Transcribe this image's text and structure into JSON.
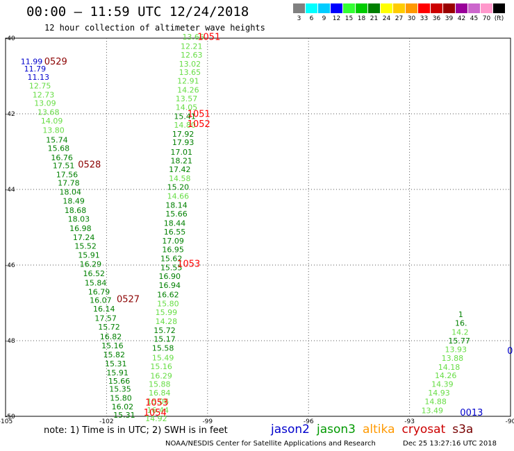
{
  "header": {
    "title": "00:00 – 11:59 UTC 12/24/2018",
    "subtitle": "12 hour collection of altimeter wave heights"
  },
  "colors": {
    "jason2": "#0000cc",
    "jason3": "#009900",
    "altika": "#ff9900",
    "cryosat": "#cc0000",
    "s3a": "#770000",
    "green_dark": "#008000",
    "green_light": "#66dd44",
    "blue": "#0000cc",
    "red": "#ff0000",
    "maroon": "#8b0000",
    "grid": "#555555"
  },
  "scale": {
    "colors": [
      "#808080",
      "#00ffff",
      "#00ccff",
      "#0000ff",
      "#33ff33",
      "#00cc00",
      "#008000",
      "#ffff00",
      "#ffcc00",
      "#ff9900",
      "#ff0000",
      "#cc0000",
      "#990000",
      "#990099",
      "#cc66cc",
      "#ff99cc",
      "#000000"
    ],
    "labels": [
      "3",
      "6",
      "9",
      "12",
      "15",
      "18",
      "21",
      "24",
      "27",
      "30",
      "33",
      "36",
      "39",
      "42",
      "45",
      "70",
      "(ft)"
    ]
  },
  "footer": {
    "note": "note: 1) Time is in UTC; 2) SWH is in feet",
    "sats": [
      "jason2",
      "jason3",
      "altika",
      "cryosat",
      "s3a"
    ],
    "credit": "NOAA/NESDIS Center for Satellite Applications and Research",
    "stamp": "Dec 25 13:27:16 UTC 2018"
  },
  "chart_data": {
    "type": "scatter",
    "title": "00:00 – 11:59 UTC 12/24/2018",
    "subtitle": "12 hour collection of altimeter wave heights",
    "xlabel": "",
    "ylabel": "",
    "xlim": [
      -105,
      -90
    ],
    "ylim": [
      -50,
      -40
    ],
    "x_ticks": [
      "-105",
      "-102",
      "-99",
      "-96",
      "-93",
      "-90"
    ],
    "x_tick_values": [
      -105,
      -102,
      -99,
      -96,
      -93,
      -90
    ],
    "y_ticks": [
      "-40",
      "-42",
      "-44",
      "-46",
      "-48",
      "-50"
    ],
    "y_tick_values": [
      -40,
      -42,
      -44,
      -46,
      -48,
      -50
    ],
    "grid": true,
    "series": [
      {
        "name": "0529",
        "color_key": "blue_to_green",
        "points": [
          {
            "lon": -104.55,
            "lat": -40.69,
            "v": "11.99",
            "c": "blue"
          },
          {
            "lon": -104.45,
            "lat": -40.88,
            "v": "11.79",
            "c": "blue"
          },
          {
            "lon": -104.35,
            "lat": -41.1,
            "v": "11.13",
            "c": "blue"
          },
          {
            "lon": -104.3,
            "lat": -41.33,
            "v": "12.75",
            "c": "green_light"
          },
          {
            "lon": -104.2,
            "lat": -41.57,
            "v": "12.73",
            "c": "green_light"
          },
          {
            "lon": -104.15,
            "lat": -41.79,
            "v": "13.09",
            "c": "green_light"
          },
          {
            "lon": -104.05,
            "lat": -42.03,
            "v": "13.68",
            "c": "green_light"
          },
          {
            "lon": -103.95,
            "lat": -42.26,
            "v": "14.09",
            "c": "green_light"
          },
          {
            "lon": -103.9,
            "lat": -42.5,
            "v": "13.80",
            "c": "green_light"
          },
          {
            "lon": -103.8,
            "lat": -42.76,
            "v": "15.74",
            "c": "green_dark"
          },
          {
            "lon": -103.75,
            "lat": -42.98,
            "v": "15.68",
            "c": "green_dark"
          },
          {
            "lon": -103.65,
            "lat": -43.23,
            "v": "16.76",
            "c": "green_dark"
          },
          {
            "lon": -103.6,
            "lat": -43.44,
            "v": "17.51",
            "c": "green_dark"
          },
          {
            "lon": -103.5,
            "lat": -43.68,
            "v": "17.56",
            "c": "green_dark"
          },
          {
            "lon": -103.45,
            "lat": -43.9,
            "v": "17.78",
            "c": "green_dark"
          },
          {
            "lon": -103.4,
            "lat": -44.14,
            "v": "18.04",
            "c": "green_dark"
          },
          {
            "lon": -103.3,
            "lat": -44.38,
            "v": "18.49",
            "c": "green_dark"
          },
          {
            "lon": -103.25,
            "lat": -44.62,
            "v": "18.68",
            "c": "green_dark"
          },
          {
            "lon": -103.15,
            "lat": -44.85,
            "v": "18.03",
            "c": "green_dark"
          },
          {
            "lon": -103.1,
            "lat": -45.1,
            "v": "16.98",
            "c": "green_dark"
          },
          {
            "lon": -103.0,
            "lat": -45.34,
            "v": "17.24",
            "c": "green_dark"
          },
          {
            "lon": -102.95,
            "lat": -45.57,
            "v": "15.52",
            "c": "green_dark"
          },
          {
            "lon": -102.85,
            "lat": -45.81,
            "v": "15.91",
            "c": "green_dark"
          },
          {
            "lon": -102.8,
            "lat": -46.05,
            "v": "16.29",
            "c": "green_dark"
          },
          {
            "lon": -102.7,
            "lat": -46.29,
            "v": "16.52",
            "c": "green_dark"
          },
          {
            "lon": -102.65,
            "lat": -46.54,
            "v": "15.84",
            "c": "green_dark"
          },
          {
            "lon": -102.55,
            "lat": -46.78,
            "v": "16.79",
            "c": "green_dark"
          },
          {
            "lon": -102.5,
            "lat": -47.0,
            "v": "16.07",
            "c": "green_dark"
          },
          {
            "lon": -102.4,
            "lat": -47.23,
            "v": "16.14",
            "c": "green_dark"
          },
          {
            "lon": -102.35,
            "lat": -47.48,
            "v": "17.57",
            "c": "green_dark"
          },
          {
            "lon": -102.25,
            "lat": -47.71,
            "v": "15.72",
            "c": "green_dark"
          },
          {
            "lon": -102.2,
            "lat": -47.96,
            "v": "16.82",
            "c": "green_dark"
          },
          {
            "lon": -102.15,
            "lat": -48.2,
            "v": "15.16",
            "c": "green_dark"
          },
          {
            "lon": -102.1,
            "lat": -48.44,
            "v": "15.82",
            "c": "green_dark"
          },
          {
            "lon": -102.05,
            "lat": -48.68,
            "v": "15.31",
            "c": "green_dark"
          },
          {
            "lon": -102.0,
            "lat": -48.92,
            "v": "15.91",
            "c": "green_dark"
          },
          {
            "lon": -101.95,
            "lat": -49.14,
            "v": "15.66",
            "c": "green_dark"
          },
          {
            "lon": -101.92,
            "lat": -49.35,
            "v": "15.35",
            "c": "green_dark"
          },
          {
            "lon": -101.9,
            "lat": -49.59,
            "v": "15.80",
            "c": "green_dark"
          },
          {
            "lon": -101.85,
            "lat": -49.82,
            "v": "16.02",
            "c": "green_dark"
          },
          {
            "lon": -101.8,
            "lat": -50.04,
            "v": "15.31",
            "c": "green_dark"
          }
        ]
      },
      {
        "name": "1051",
        "color_key": "green",
        "points": [
          {
            "lon": -99.75,
            "lat": -40.04,
            "v": "13.66",
            "c": "green_light"
          },
          {
            "lon": -99.8,
            "lat": -40.28,
            "v": "12.21",
            "c": "green_light"
          },
          {
            "lon": -99.8,
            "lat": -40.51,
            "v": "12.63",
            "c": "green_light"
          },
          {
            "lon": -99.85,
            "lat": -40.75,
            "v": "13.02",
            "c": "green_light"
          },
          {
            "lon": -99.85,
            "lat": -40.97,
            "v": "13.65",
            "c": "green_light"
          },
          {
            "lon": -99.9,
            "lat": -41.2,
            "v": "12.91",
            "c": "green_light"
          },
          {
            "lon": -99.9,
            "lat": -41.44,
            "v": "14.26",
            "c": "green_light"
          },
          {
            "lon": -99.95,
            "lat": -41.67,
            "v": "13.57",
            "c": "green_light"
          },
          {
            "lon": -99.95,
            "lat": -41.9,
            "v": "14.05",
            "c": "green_light"
          },
          {
            "lon": -100.0,
            "lat": -42.14,
            "v": "15.41",
            "c": "green_dark"
          },
          {
            "lon": -100.0,
            "lat": -42.37,
            "v": "14.80",
            "c": "green_light"
          },
          {
            "lon": -100.05,
            "lat": -42.61,
            "v": "17.92",
            "c": "green_dark"
          },
          {
            "lon": -100.05,
            "lat": -42.83,
            "v": "17.93",
            "c": "green_dark"
          },
          {
            "lon": -100.1,
            "lat": -43.08,
            "v": "17.01",
            "c": "green_dark"
          },
          {
            "lon": -100.1,
            "lat": -43.31,
            "v": "18.21",
            "c": "green_dark"
          },
          {
            "lon": -100.15,
            "lat": -43.54,
            "v": "17.42",
            "c": "green_dark"
          },
          {
            "lon": -100.15,
            "lat": -43.78,
            "v": "14.58",
            "c": "green_light"
          },
          {
            "lon": -100.2,
            "lat": -44.01,
            "v": "15.20",
            "c": "green_dark"
          },
          {
            "lon": -100.2,
            "lat": -44.25,
            "v": "14.66",
            "c": "green_light"
          },
          {
            "lon": -100.25,
            "lat": -44.49,
            "v": "18.14",
            "c": "green_dark"
          },
          {
            "lon": -100.25,
            "lat": -44.72,
            "v": "15.66",
            "c": "green_dark"
          },
          {
            "lon": -100.3,
            "lat": -44.96,
            "v": "18.44",
            "c": "green_dark"
          },
          {
            "lon": -100.3,
            "lat": -45.19,
            "v": "16.55",
            "c": "green_dark"
          },
          {
            "lon": -100.35,
            "lat": -45.43,
            "v": "17.09",
            "c": "green_dark"
          },
          {
            "lon": -100.35,
            "lat": -45.66,
            "v": "16.95",
            "c": "green_dark"
          },
          {
            "lon": -100.4,
            "lat": -45.9,
            "v": "15.62",
            "c": "green_dark"
          },
          {
            "lon": -100.4,
            "lat": -46.14,
            "v": "15.55",
            "c": "green_dark"
          },
          {
            "lon": -100.45,
            "lat": -46.37,
            "v": "16.90",
            "c": "green_dark"
          },
          {
            "lon": -100.45,
            "lat": -46.61,
            "v": "16.94",
            "c": "green_dark"
          },
          {
            "lon": -100.5,
            "lat": -46.85,
            "v": "16.62",
            "c": "green_dark"
          },
          {
            "lon": -100.5,
            "lat": -47.09,
            "v": "15.80",
            "c": "green_light"
          },
          {
            "lon": -100.55,
            "lat": -47.32,
            "v": "15.99",
            "c": "green_light"
          },
          {
            "lon": -100.55,
            "lat": -47.56,
            "v": "14.28",
            "c": "green_light"
          },
          {
            "lon": -100.6,
            "lat": -47.8,
            "v": "15.72",
            "c": "green_dark"
          },
          {
            "lon": -100.6,
            "lat": -48.03,
            "v": "15.17",
            "c": "green_dark"
          },
          {
            "lon": -100.65,
            "lat": -48.27,
            "v": "15.58",
            "c": "green_dark"
          },
          {
            "lon": -100.65,
            "lat": -48.52,
            "v": "15.49",
            "c": "green_light"
          },
          {
            "lon": -100.7,
            "lat": -48.75,
            "v": "15.16",
            "c": "green_light"
          },
          {
            "lon": -100.7,
            "lat": -49.0,
            "v": "16.29",
            "c": "green_light"
          },
          {
            "lon": -100.75,
            "lat": -49.22,
            "v": "15.88",
            "c": "green_light"
          },
          {
            "lon": -100.75,
            "lat": -49.45,
            "v": "16.84",
            "c": "green_light"
          },
          {
            "lon": -100.8,
            "lat": -49.68,
            "v": "15.06",
            "c": "green_light"
          },
          {
            "lon": -100.8,
            "lat": -49.91,
            "v": "16.44",
            "c": "green_light"
          },
          {
            "lon": -100.85,
            "lat": -50.13,
            "v": "14.92",
            "c": "green_light"
          }
        ]
      },
      {
        "name": "0013",
        "color_key": "green",
        "points": [
          {
            "lon": -92.65,
            "lat": -49.92,
            "v": "13.49",
            "c": "green_light"
          },
          {
            "lon": -92.55,
            "lat": -49.68,
            "v": "14.88",
            "c": "green_light"
          },
          {
            "lon": -92.45,
            "lat": -49.45,
            "v": "14.93",
            "c": "green_light"
          },
          {
            "lon": -92.35,
            "lat": -49.22,
            "v": "14.39",
            "c": "green_light"
          },
          {
            "lon": -92.25,
            "lat": -48.99,
            "v": "14.26",
            "c": "green_light"
          },
          {
            "lon": -92.15,
            "lat": -48.77,
            "v": "14.18",
            "c": "green_light"
          },
          {
            "lon": -92.05,
            "lat": -48.53,
            "v": "13.88",
            "c": "green_light"
          },
          {
            "lon": -91.95,
            "lat": -48.3,
            "v": "13.93",
            "c": "green_light"
          },
          {
            "lon": -91.85,
            "lat": -48.07,
            "v": "15.77",
            "c": "green_dark"
          },
          {
            "lon": -91.75,
            "lat": -47.84,
            "v": "14.2",
            "c": "green_light"
          },
          {
            "lon": -91.65,
            "lat": -47.61,
            "v": "16.",
            "c": "green_dark"
          },
          {
            "lon": -91.55,
            "lat": -47.38,
            "v": "1",
            "c": "green_dark"
          }
        ]
      }
    ],
    "pass_labels": [
      {
        "text": "1051",
        "lon": -99.3,
        "lat": -40.05,
        "c": "red"
      },
      {
        "text": "0529",
        "lon": -103.85,
        "lat": -40.7,
        "c": "maroon"
      },
      {
        "text": "1051",
        "lon": -99.6,
        "lat": -42.08,
        "c": "red"
      },
      {
        "text": "1052",
        "lon": -99.6,
        "lat": -42.35,
        "c": "red"
      },
      {
        "text": "0528",
        "lon": -102.85,
        "lat": -43.42,
        "c": "maroon"
      },
      {
        "text": "1053",
        "lon": -99.9,
        "lat": -46.05,
        "c": "red"
      },
      {
        "text": "0527",
        "lon": -101.7,
        "lat": -46.98,
        "c": "maroon"
      },
      {
        "text": "1053",
        "lon": -100.85,
        "lat": -49.72,
        "c": "red"
      },
      {
        "text": "1054",
        "lon": -100.9,
        "lat": -49.98,
        "c": "red"
      },
      {
        "text": "0013",
        "lon": -91.5,
        "lat": -49.98,
        "c": "blue"
      },
      {
        "text": "0",
        "lon": -90.1,
        "lat": -48.35,
        "c": "blue"
      }
    ]
  }
}
